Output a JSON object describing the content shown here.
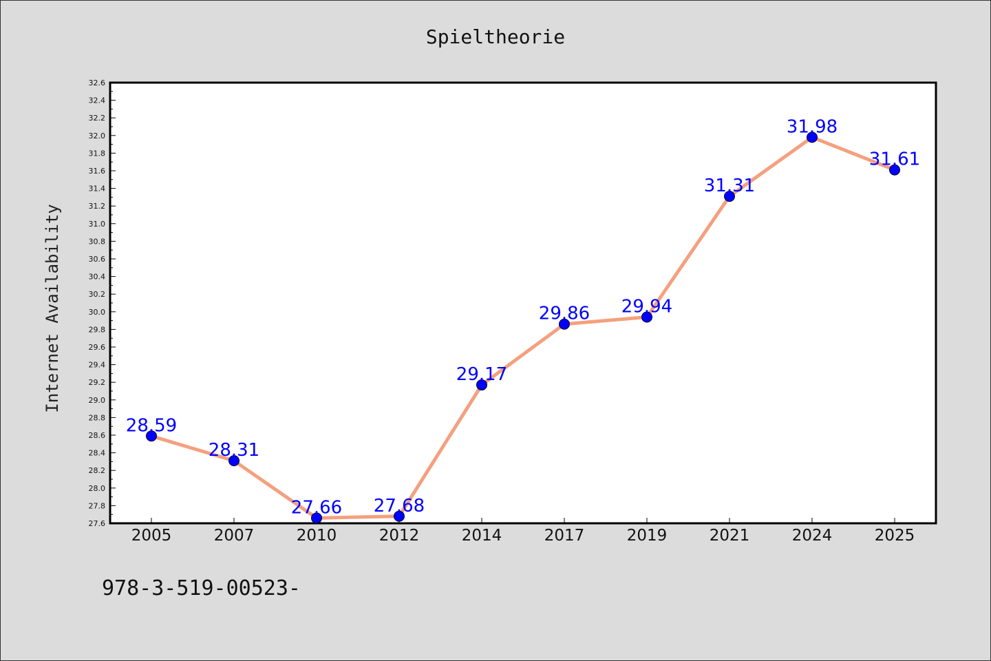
{
  "chart_data": {
    "type": "line",
    "title": "Spieltheorie",
    "xlabel": "",
    "ylabel": "Internet Availability",
    "categories": [
      "2005",
      "2007",
      "2010",
      "2012",
      "2014",
      "2017",
      "2019",
      "2021",
      "2024",
      "2025"
    ],
    "series": [
      {
        "values": [
          28.59,
          28.31,
          27.66,
          27.68,
          29.17,
          29.86,
          29.94,
          31.31,
          31.98,
          31.61
        ],
        "line_color": "#f4a07f",
        "marker_color": "#0000ff"
      }
    ],
    "data_labels": [
      "28.59",
      "28.31",
      "27.66",
      "27.68",
      "29.17",
      "29.86",
      "29.94",
      "31.31",
      "31.98",
      "31.61"
    ],
    "yticks": [
      "27.6",
      "27.8",
      "28.0",
      "28.2",
      "28.4",
      "28.6",
      "28.8",
      "29.0",
      "29.2",
      "29.4",
      "29.6",
      "29.8",
      "30.0",
      "30.2",
      "30.4",
      "30.6",
      "30.8",
      "31.0",
      "31.2",
      "31.4",
      "31.6",
      "31.8",
      "32.0",
      "32.2",
      "32.4",
      "32.6"
    ],
    "ylim": [
      27.6,
      32.6
    ],
    "grid": false,
    "legend": "none",
    "background_color": "#dcdcdc",
    "plot_background": "#ffffff"
  },
  "footnote": "978-3-519-00523-"
}
